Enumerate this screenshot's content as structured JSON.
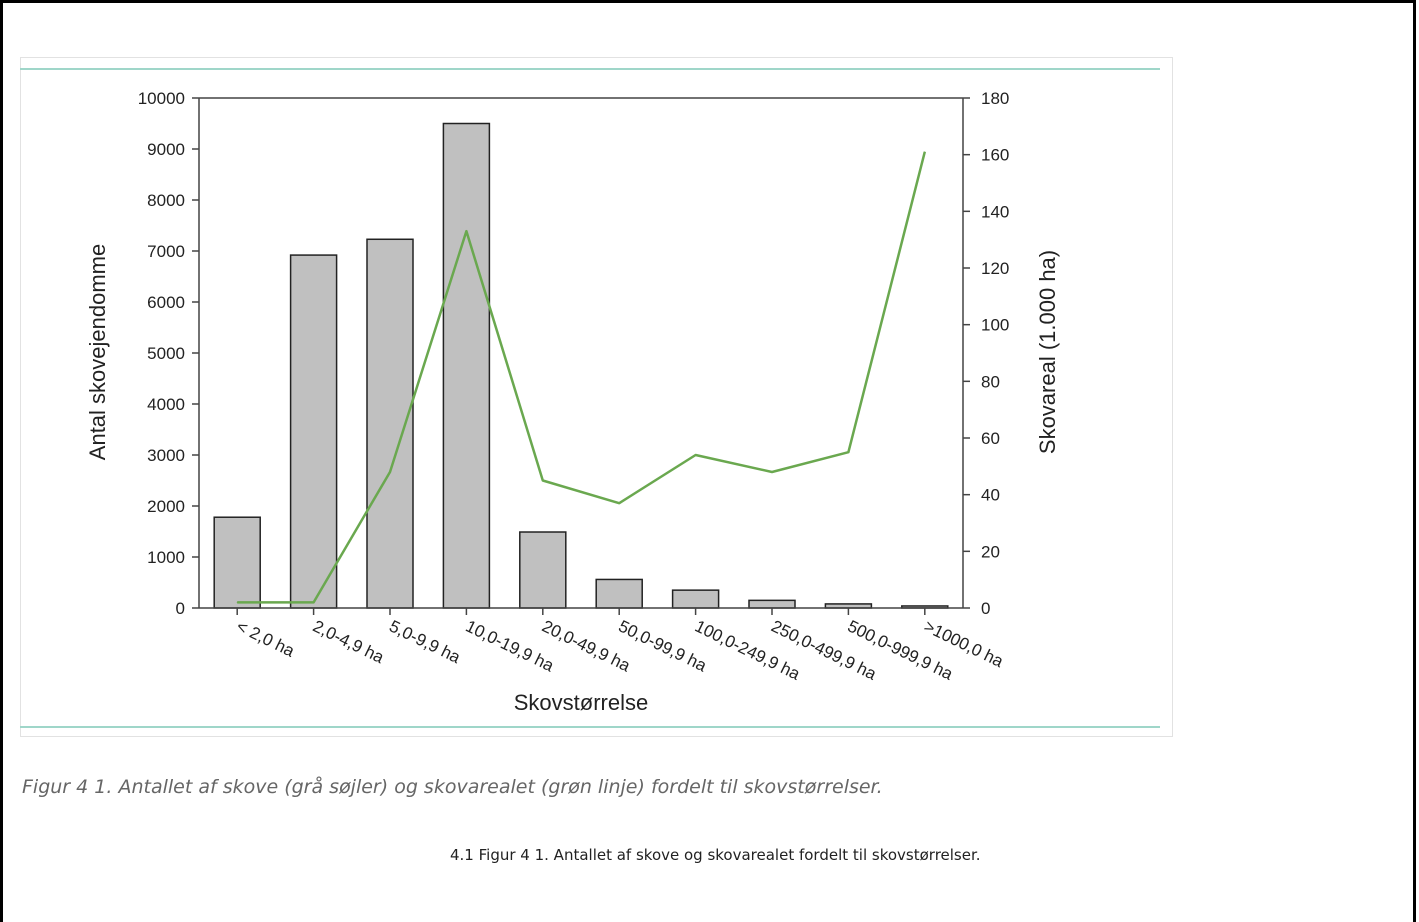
{
  "chart_data": {
    "type": "bar",
    "categories": [
      "< 2,0 ha",
      "2,0-4,9 ha",
      "5,0-9,9 ha",
      "10,0-19,9 ha",
      "20,0-49,9 ha",
      "50,0-99,9 ha",
      "100,0-249,9 ha",
      "250,0-499,9 ha",
      "500,0-999,9 ha",
      ">1000,0 ha"
    ],
    "series": [
      {
        "type": "bar",
        "axis": "left",
        "values": [
          1780,
          6920,
          7230,
          9500,
          1490,
          560,
          350,
          150,
          80,
          40
        ],
        "color": "#c0c0c0"
      },
      {
        "type": "line",
        "axis": "right",
        "values": [
          2,
          2,
          48,
          133,
          45,
          37,
          54,
          48,
          55,
          161
        ],
        "color": "#6aa84f"
      }
    ],
    "xlabel": "Skovstørrelse",
    "ylabel": "Antal skovejendomme",
    "y2label": "Skovareal (1.000 ha)",
    "ylim": [
      0,
      10000
    ],
    "y2lim": [
      0,
      180
    ],
    "yticks": [
      "0",
      "1000",
      "2000",
      "3000",
      "4000",
      "5000",
      "6000",
      "7000",
      "8000",
      "9000",
      "10000"
    ],
    "y2ticks": [
      "0",
      "20",
      "40",
      "60",
      "80",
      "100",
      "120",
      "140",
      "160",
      "180"
    ],
    "grid": false,
    "legend": "none"
  },
  "caption_italic": "Figur 4 1. Antallet af skove (grå søjler) og skovarealet (grøn linje) fordelt til skovstørrelser.",
  "caption_center": "4.1 Figur 4 1. Antallet af skove og skovarealet fordelt til skovstørrelser."
}
